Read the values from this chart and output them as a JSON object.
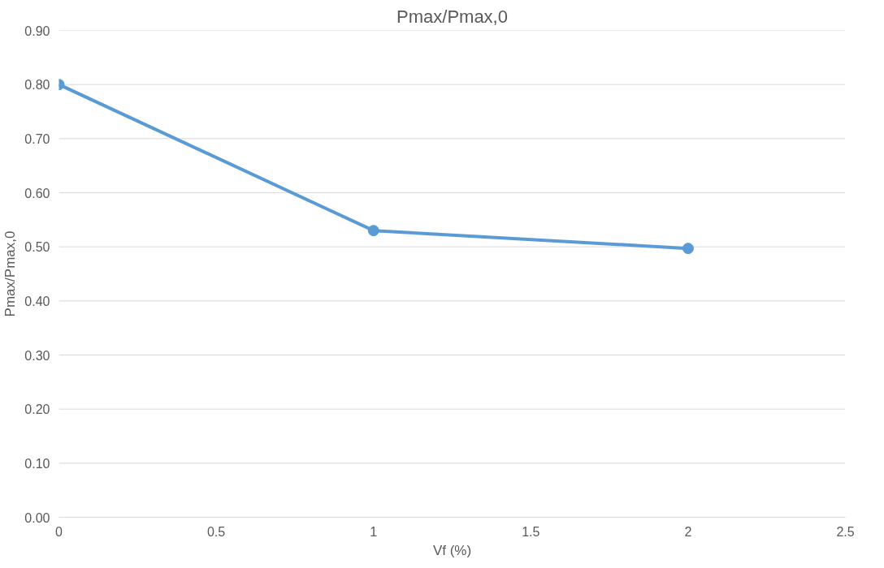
{
  "chart_data": {
    "type": "line",
    "title": "Pmax/Pmax,0",
    "xlabel": "Vf (%)",
    "ylabel": "Pmax/Pmax,0",
    "x": [
      0,
      1,
      2
    ],
    "series": [
      {
        "color": "#5b9bd5",
        "values": [
          0.8,
          0.53,
          0.497
        ]
      }
    ],
    "xlim": [
      0,
      2.5
    ],
    "xticks": [
      0,
      0.5,
      1,
      1.5,
      2,
      2.5
    ],
    "ylim": [
      0,
      0.9
    ],
    "yticks": [
      {
        "value": 0,
        "label": "0.00"
      },
      {
        "value": 0.1,
        "label": "0.10"
      },
      {
        "value": 0.2,
        "label": "0.20"
      },
      {
        "value": 0.3,
        "label": "0.30"
      },
      {
        "value": 0.4,
        "label": "0.40"
      },
      {
        "value": 0.5,
        "label": "0.50"
      },
      {
        "value": 0.6,
        "label": "0.60"
      },
      {
        "value": 0.7,
        "label": "0.70"
      },
      {
        "value": 0.8,
        "label": "0.80"
      },
      {
        "value": 0.9,
        "label": "0.90"
      }
    ],
    "grid": "y",
    "marker": "circle",
    "line_style": "solid"
  }
}
